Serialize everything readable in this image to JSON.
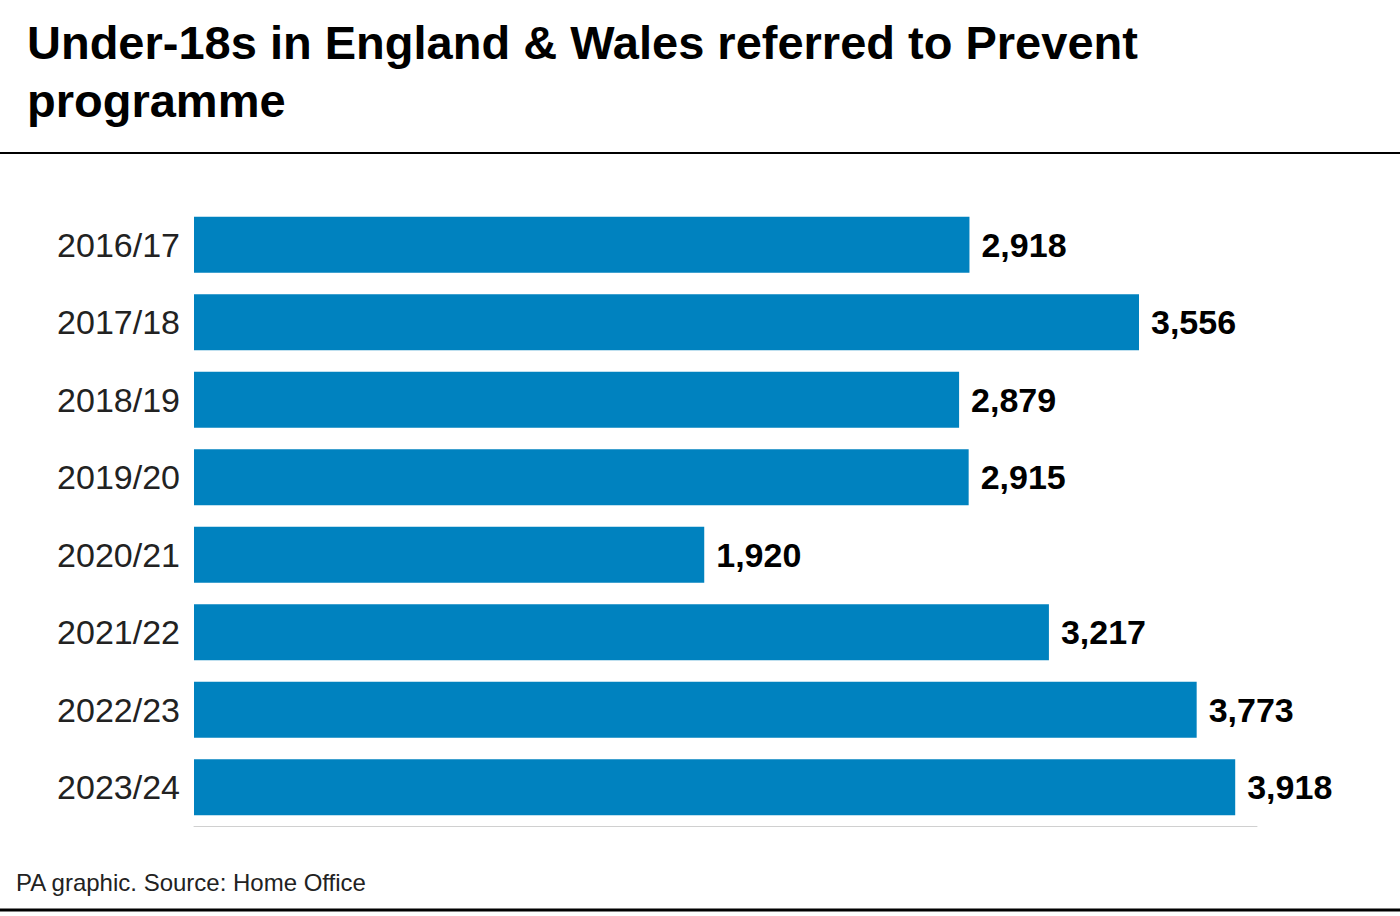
{
  "chart_data": {
    "type": "bar",
    "orientation": "horizontal",
    "title": "Under-18s in England & Wales referred to Prevent programme",
    "source": "PA graphic. Source: Home Office",
    "categories": [
      "2016/17",
      "2017/18",
      "2018/19",
      "2019/20",
      "2020/21",
      "2021/22",
      "2022/23",
      "2023/24"
    ],
    "values": [
      2918,
      3556,
      2879,
      2915,
      1920,
      3217,
      3773,
      3918
    ],
    "value_labels": [
      "2,918",
      "3,556",
      "2,879",
      "2,915",
      "1,920",
      "3,217",
      "3,773",
      "3,918"
    ],
    "color": "#0082bf",
    "xlim": [
      0,
      4000
    ],
    "grid": false,
    "data_labels": true,
    "tick_labels": "y"
  }
}
